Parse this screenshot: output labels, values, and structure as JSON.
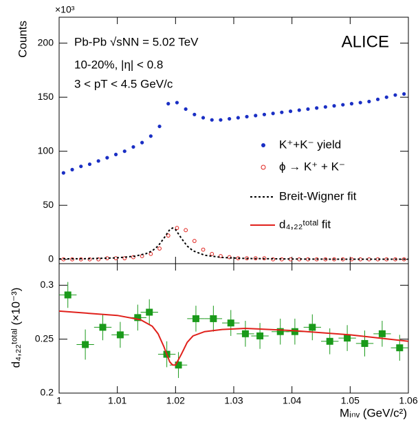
{
  "chart_data": [
    {
      "type": "scatter",
      "multiplier": "×10³",
      "ylabel": "Counts",
      "annotations": [
        "Pb-Pb √sNN = 5.02 TeV",
        "10-20%, |η| < 0.8",
        "3 < pT < 4.5 GeV/c"
      ],
      "experiment": "ALICE",
      "xlim": [
        1,
        1.06
      ],
      "xticks": [
        1,
        1.01,
        1.02,
        1.03,
        1.04,
        1.05,
        1.06
      ],
      "ylim": [
        -4,
        224
      ],
      "yticks": [
        0,
        50,
        100,
        150,
        200
      ],
      "series": [
        {
          "name": "K⁺+K⁻ yield",
          "color": "#1a2fc4",
          "style": "filled-circle",
          "x": [
            1.00075,
            1.00225,
            1.00375,
            1.00525,
            1.00675,
            1.00825,
            1.00975,
            1.01125,
            1.01275,
            1.01425,
            1.01575,
            1.01725,
            1.01875,
            1.02025,
            1.02175,
            1.02325,
            1.02475,
            1.02625,
            1.02775,
            1.02925,
            1.03075,
            1.03225,
            1.03375,
            1.03525,
            1.03675,
            1.03825,
            1.03975,
            1.04125,
            1.04275,
            1.04425,
            1.04575,
            1.04725,
            1.04875,
            1.05025,
            1.05175,
            1.05325,
            1.05475,
            1.05625,
            1.05775,
            1.05925
          ],
          "values": [
            80,
            83,
            86,
            88,
            91,
            94,
            97,
            100,
            104,
            108,
            114,
            123,
            144,
            145,
            139,
            134,
            131,
            129,
            129,
            130,
            131,
            132,
            133,
            134,
            135,
            136,
            137,
            138,
            139,
            140,
            141,
            142,
            143,
            144,
            145,
            146,
            148,
            150,
            152,
            153
          ]
        },
        {
          "name": "ϕ → K⁺ + K⁻",
          "color": "#e0201b",
          "style": "open-circle",
          "x": [
            1.00075,
            1.00225,
            1.00375,
            1.00525,
            1.00675,
            1.00825,
            1.00975,
            1.01125,
            1.01275,
            1.01425,
            1.01575,
            1.01725,
            1.01875,
            1.02025,
            1.02175,
            1.02325,
            1.02475,
            1.02625,
            1.02775,
            1.02925,
            1.03075,
            1.03225,
            1.03375,
            1.03525,
            1.03675,
            1.03825,
            1.03975,
            1.04125,
            1.04275,
            1.04425,
            1.04575,
            1.04725,
            1.04875,
            1.05025,
            1.05175,
            1.05325,
            1.05475,
            1.05625,
            1.05775,
            1.05925
          ],
          "values": [
            0,
            0,
            0,
            0,
            0,
            1,
            1,
            1,
            2,
            3,
            5,
            10,
            22,
            29,
            27,
            17,
            9,
            5,
            3,
            2,
            1,
            1,
            1,
            1,
            0,
            0,
            0,
            0,
            0,
            0,
            0,
            0,
            0,
            0,
            0,
            0,
            0,
            0,
            0,
            0
          ]
        },
        {
          "name": "Breit-Wigner fit",
          "color": "#000000",
          "style": "dashed-line",
          "x": [
            1.0,
            1.005,
            1.01,
            1.013,
            1.015,
            1.016,
            1.017,
            1.018,
            1.019,
            1.0195,
            1.02,
            1.021,
            1.022,
            1.023,
            1.025,
            1.028,
            1.032,
            1.04,
            1.05,
            1.06
          ],
          "values": [
            0.4,
            0.6,
            1.4,
            2.9,
            5.4,
            7.9,
            12.3,
            19.5,
            27.5,
            29,
            27.5,
            19.5,
            12.3,
            7.9,
            3.8,
            1.7,
            0.8,
            0.3,
            0.1,
            0.1
          ]
        }
      ]
    },
    {
      "type": "scatter",
      "ylabel": "d₄,₂₂ᵗᵒᵗᵃˡ (×10⁻³)",
      "xlabel": "Mᵢₙᵥ (GeV/c²)",
      "xlim": [
        1,
        1.06
      ],
      "xticks": [
        1,
        1.01,
        1.02,
        1.03,
        1.04,
        1.05,
        1.06
      ],
      "ylim": [
        0.2,
        0.32
      ],
      "yticks": [
        0.2,
        0.25,
        0.3
      ],
      "series": [
        {
          "color": "#1a9a1a",
          "style": "square-errors",
          "x": [
            1.0015,
            1.0045,
            1.0075,
            1.0105,
            1.0135,
            1.0155,
            1.0185,
            1.0205,
            1.0235,
            1.0265,
            1.0295,
            1.032,
            1.0345,
            1.038,
            1.0405,
            1.0435,
            1.0465,
            1.0495,
            1.0525,
            1.0555,
            1.0585
          ],
          "xerr": [
            0.0015,
            0.0015,
            0.0015,
            0.0015,
            0.0015,
            0.0015,
            0.0015,
            0.0015,
            0.0015,
            0.0015,
            0.0015,
            0.0015,
            0.0015,
            0.0015,
            0.0015,
            0.0015,
            0.0015,
            0.0015,
            0.0015,
            0.0015,
            0.0015
          ],
          "values": [
            0.291,
            0.245,
            0.261,
            0.254,
            0.27,
            0.275,
            0.236,
            0.226,
            0.269,
            0.269,
            0.265,
            0.255,
            0.253,
            0.257,
            0.257,
            0.261,
            0.248,
            0.251,
            0.246,
            0.255,
            0.242
          ],
          "errors": [
            0.012,
            0.014,
            0.012,
            0.012,
            0.012,
            0.012,
            0.012,
            0.012,
            0.012,
            0.012,
            0.012,
            0.012,
            0.012,
            0.012,
            0.012,
            0.012,
            0.012,
            0.012,
            0.012,
            0.012,
            0.012
          ]
        },
        {
          "name": "d₄,₂₂ᵗᵒᵗᵃˡ fit",
          "color": "#e0201b",
          "style": "solid-line",
          "x": [
            1.0,
            1.005,
            1.01,
            1.014,
            1.016,
            1.017,
            1.018,
            1.019,
            1.0195,
            1.02,
            1.021,
            1.022,
            1.023,
            1.025,
            1.028,
            1.032,
            1.04,
            1.05,
            1.06
          ],
          "values": [
            0.276,
            0.274,
            0.272,
            0.268,
            0.262,
            0.255,
            0.243,
            0.229,
            0.226,
            0.226,
            0.236,
            0.247,
            0.253,
            0.257,
            0.259,
            0.26,
            0.258,
            0.254,
            0.248
          ]
        }
      ]
    }
  ]
}
